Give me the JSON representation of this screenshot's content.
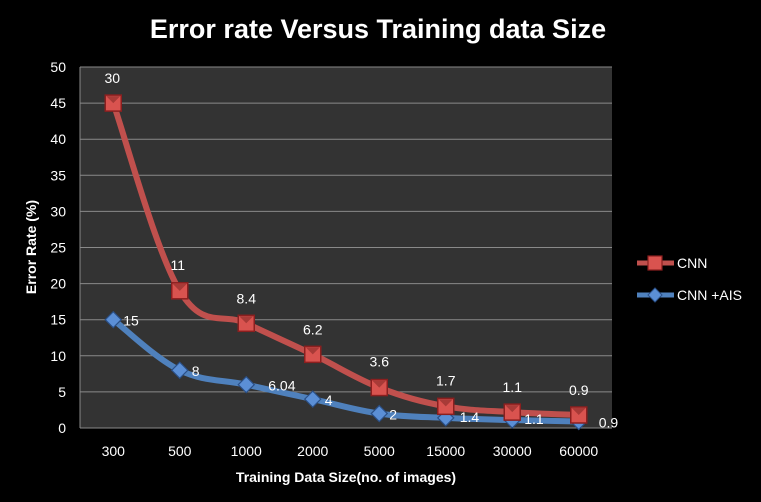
{
  "chart_data": {
    "type": "line",
    "title": "Error rate Versus Training data Size",
    "xlabel": "Training Data Size(no. of images)",
    "ylabel": "Error Rate (%)",
    "ylim": [
      0,
      50
    ],
    "yticks": [
      0,
      5,
      10,
      15,
      20,
      25,
      30,
      35,
      40,
      45,
      50
    ],
    "categories": [
      "300",
      "500",
      "1000",
      "2000",
      "5000",
      "15000",
      "30000",
      "60000"
    ],
    "grid": true,
    "legend_position": "right",
    "plot_background": "#333333",
    "series": [
      {
        "name": "CNN",
        "color": "#c0504d",
        "marker": "square",
        "values": [
          45,
          19,
          14.5,
          10.2,
          5.6,
          3.0,
          2.2,
          1.8
        ],
        "labels": [
          "30",
          "11",
          "8.4",
          "6.2",
          "3.6",
          "1.7",
          "1.1",
          "0.9"
        ]
      },
      {
        "name": "CNN +AIS",
        "color": "#4f81bd",
        "marker": "diamond",
        "values": [
          15,
          8,
          6,
          4,
          2,
          1.4,
          1.1,
          0.9
        ],
        "labels": [
          "15",
          "8",
          "6.04",
          "4",
          "2",
          "1.4",
          "1.1",
          "0.9"
        ]
      }
    ]
  }
}
